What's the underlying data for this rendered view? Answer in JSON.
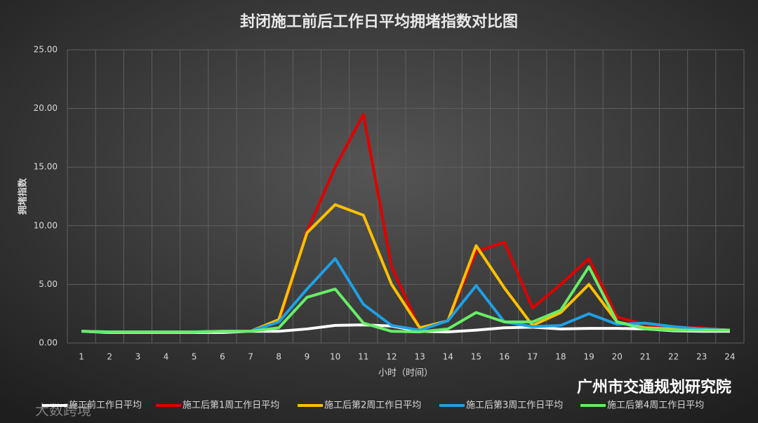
{
  "chart_data": {
    "type": "line",
    "title": "封闭施工前后工作日平均拥堵指数对比图",
    "y_label": "拥堵指数",
    "x_label": "小时（时间）",
    "watermark": "广州市交通规划研究院",
    "corner_mark": "大数跨境",
    "categories": [
      "1",
      "2",
      "3",
      "4",
      "5",
      "6",
      "7",
      "8",
      "9",
      "10",
      "11",
      "12",
      "13",
      "14",
      "15",
      "16",
      "17",
      "18",
      "19",
      "20",
      "21",
      "22",
      "23",
      "24"
    ],
    "ylim": [
      0,
      25
    ],
    "yticks": [
      {
        "value": 0,
        "label": "0.00"
      },
      {
        "value": 5,
        "label": "5.00"
      },
      {
        "value": 10,
        "label": "10.00"
      },
      {
        "value": 15,
        "label": "15.00"
      },
      {
        "value": 20,
        "label": "20.00"
      },
      {
        "value": 25,
        "label": "25.00"
      }
    ],
    "grid": true,
    "legend": "bottom",
    "series": [
      {
        "name": "施工前工作日平均",
        "color": "#ffffff",
        "values": [
          1.0,
          0.9,
          0.9,
          0.9,
          0.9,
          0.9,
          1.0,
          1.0,
          1.2,
          1.5,
          1.55,
          1.45,
          1.0,
          0.95,
          1.1,
          1.3,
          1.35,
          1.2,
          1.25,
          1.25,
          1.2,
          1.05,
          1.0,
          1.0
        ]
      },
      {
        "name": "施工后第1周工作日平均",
        "color": "#e00000",
        "values": [
          1.0,
          0.95,
          0.95,
          0.95,
          0.95,
          1.0,
          1.0,
          1.8,
          9.5,
          15.0,
          19.5,
          6.5,
          1.2,
          1.9,
          7.8,
          8.6,
          3.0,
          5.0,
          7.2,
          2.2,
          1.6,
          1.3,
          1.3,
          1.1
        ]
      },
      {
        "name": "施工后第2周工作日平均",
        "color": "#ffc000",
        "values": [
          1.0,
          0.95,
          0.95,
          0.95,
          0.95,
          1.0,
          1.0,
          2.0,
          9.4,
          11.8,
          10.9,
          5.0,
          1.3,
          1.9,
          8.3,
          4.7,
          1.5,
          2.6,
          5.0,
          1.8,
          1.3,
          1.2,
          1.2,
          1.1
        ]
      },
      {
        "name": "施工后第3周工作日平均",
        "color": "#1ea0e6",
        "values": [
          1.0,
          0.95,
          0.95,
          0.95,
          0.95,
          1.0,
          1.0,
          1.8,
          4.6,
          7.2,
          3.3,
          1.5,
          1.1,
          1.9,
          4.9,
          1.8,
          1.4,
          1.5,
          2.5,
          1.6,
          1.7,
          1.4,
          1.2,
          1.1
        ]
      },
      {
        "name": "施工后第4周工作日平均",
        "color": "#66ee66",
        "values": [
          1.0,
          0.95,
          0.95,
          0.95,
          0.95,
          1.0,
          1.0,
          1.3,
          3.9,
          4.6,
          1.7,
          1.0,
          0.95,
          1.2,
          2.6,
          1.8,
          1.8,
          2.8,
          6.5,
          1.8,
          1.2,
          1.1,
          1.1,
          1.1
        ]
      }
    ]
  }
}
